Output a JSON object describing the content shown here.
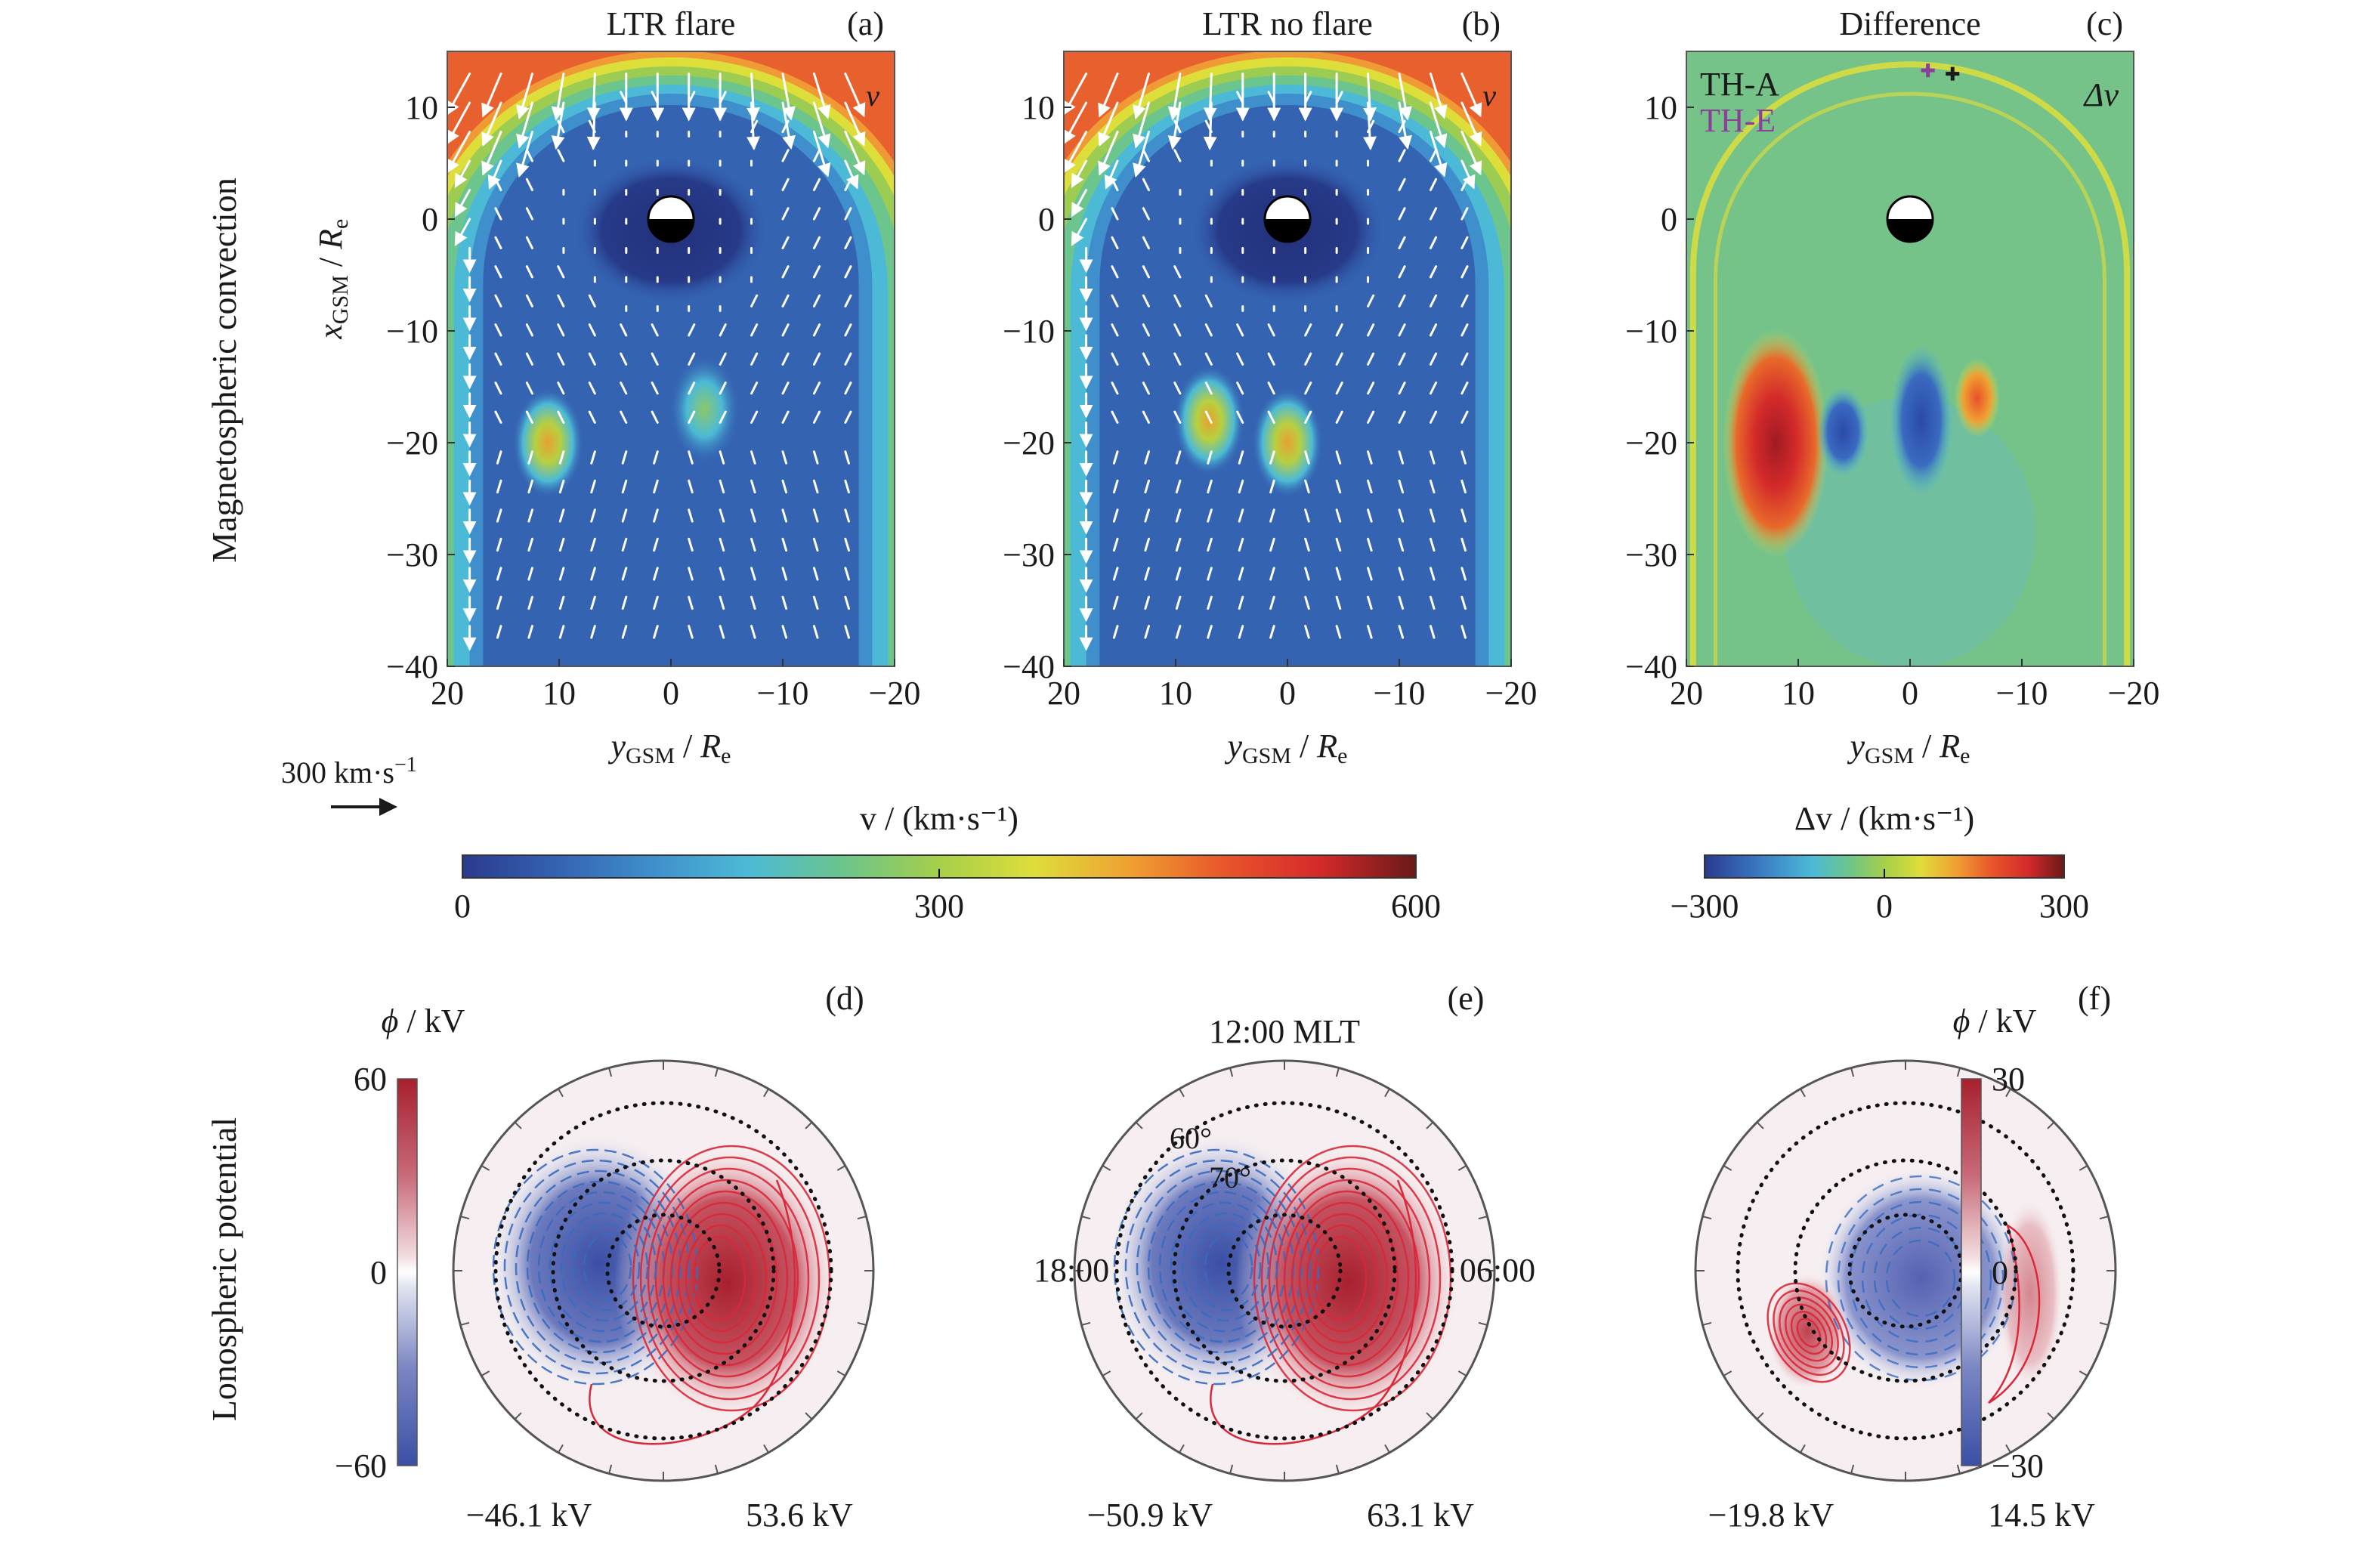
{
  "figure": {
    "row_labels": {
      "top": "Magnetospheric convection",
      "bottom": "Lonospheric potential"
    },
    "reference_vector": {
      "value": 300,
      "label": "300 km·s⁻¹"
    }
  },
  "chart_data": [
    {
      "type": "heatmap",
      "panel": "(a)",
      "title": "LTR flare",
      "quantity_label": "v",
      "xlabel": "yGSM / Re",
      "ylabel": "xGSM / Re",
      "xlim": [
        20,
        -20
      ],
      "ylim": [
        -40,
        15
      ],
      "xticks": [
        "20",
        "10",
        "0",
        "−10",
        "−20"
      ],
      "yticks": [
        "10",
        "0",
        "−10",
        "−20",
        "−30",
        "−40"
      ],
      "features": {
        "solar_wind_speed_kms": 520,
        "magnetosheath_boundary_nose_x": 11,
        "enhanced_flow_regions": [
          {
            "y": 11,
            "x": -20,
            "v_kms": 400
          },
          {
            "y": -3,
            "x": -17,
            "v_kms": 200
          }
        ]
      },
      "colorbar": "v"
    },
    {
      "type": "heatmap",
      "panel": "(b)",
      "title": "LTR no flare",
      "quantity_label": "v",
      "xlabel": "yGSM / Re",
      "ylabel": "",
      "xlim": [
        20,
        -20
      ],
      "ylim": [
        -40,
        15
      ],
      "xticks": [
        "20",
        "10",
        "0",
        "−10",
        "−20"
      ],
      "yticks": [
        "10",
        "0",
        "−10",
        "−20",
        "−30",
        "−40"
      ],
      "features": {
        "solar_wind_speed_kms": 520,
        "magnetosheath_boundary_nose_x": 11,
        "enhanced_flow_regions": [
          {
            "y": 7,
            "x": -18,
            "v_kms": 300
          },
          {
            "y": 0,
            "x": -20,
            "v_kms": 350
          }
        ]
      },
      "colorbar": "v"
    },
    {
      "type": "heatmap",
      "panel": "(c)",
      "title": "Difference",
      "quantity_label": "Δv",
      "xlabel": "yGSM / Re",
      "ylabel": "",
      "xlim": [
        20,
        -20
      ],
      "ylim": [
        -40,
        15
      ],
      "xticks": [
        "20",
        "10",
        "0",
        "−10",
        "−20"
      ],
      "yticks": [
        "10",
        "0",
        "−10",
        "−20",
        "−30",
        "−40"
      ],
      "legend": [
        {
          "label": "TH-A",
          "color": "#1a1a1a",
          "y": -3.8,
          "x": 13.0
        },
        {
          "label": "TH-E",
          "color": "#8a3f9a",
          "y": -1.6,
          "x": 13.3
        }
      ],
      "features": {
        "positive_regions": [
          {
            "y": 12,
            "x": -20,
            "dv_kms": 280
          },
          {
            "y": -6,
            "x": -16,
            "dv_kms": 180
          }
        ],
        "negative_regions": [
          {
            "y": 6,
            "x": -19,
            "dv_kms": -260
          },
          {
            "y": -1,
            "x": -18,
            "dv_kms": -240
          }
        ]
      },
      "colorbar": "dv"
    },
    {
      "type": "heatmap",
      "panel": "(d)",
      "projection": "polar",
      "latitude_rings_deg": [
        60,
        70,
        80
      ],
      "min_label": "−46.1 kV",
      "max_label": "53.6 kV",
      "min_kV": -46.1,
      "max_kV": 53.6,
      "colorbar": "phi60"
    },
    {
      "type": "heatmap",
      "panel": "(e)",
      "projection": "polar",
      "top_label": "12:00 MLT",
      "left_label": "18:00",
      "right_label": "06:00",
      "ring_labels": [
        "60°",
        "70°"
      ],
      "latitude_rings_deg": [
        60,
        70,
        80
      ],
      "min_label": "−50.9 kV",
      "max_label": "63.1 kV",
      "min_kV": -50.9,
      "max_kV": 63.1,
      "colorbar": "phi60"
    },
    {
      "type": "heatmap",
      "panel": "(f)",
      "projection": "polar",
      "latitude_rings_deg": [
        60,
        70,
        80
      ],
      "min_label": "−19.8 kV",
      "max_label": "14.5 kV",
      "min_kV": -19.8,
      "max_kV": 14.5,
      "colorbar": "phi30"
    }
  ],
  "colorbars": {
    "v": {
      "label": "v / (km·s⁻¹)",
      "range": [
        0,
        600
      ],
      "ticks": [
        "0",
        "300",
        "600"
      ]
    },
    "dv": {
      "label": "Δv / (km·s⁻¹)",
      "range": [
        -300,
        300
      ],
      "ticks": [
        "−300",
        "0",
        "300"
      ]
    },
    "phi60": {
      "label": "ϕ / kV",
      "range": [
        -60,
        60
      ],
      "ticks": [
        "60",
        "0",
        "−60"
      ]
    },
    "phi30": {
      "label": "ϕ / kV",
      "range": [
        -30,
        30
      ],
      "ticks": [
        "30",
        "0",
        "−30"
      ]
    }
  },
  "colors": {
    "jet": [
      "#2a3a8e",
      "#3463b2",
      "#3f8fcc",
      "#4cbad6",
      "#6cc58c",
      "#a6cf4a",
      "#dede3a",
      "#f0a032",
      "#e8552a",
      "#d42a2a",
      "#6a1818"
    ],
    "phi_neg": "#3a4fa6",
    "phi_pos": "#a8202e",
    "contour_pos": "#d8283a",
    "contour_neg": "#3a6ac0",
    "solar_wind": "#e8602e"
  }
}
